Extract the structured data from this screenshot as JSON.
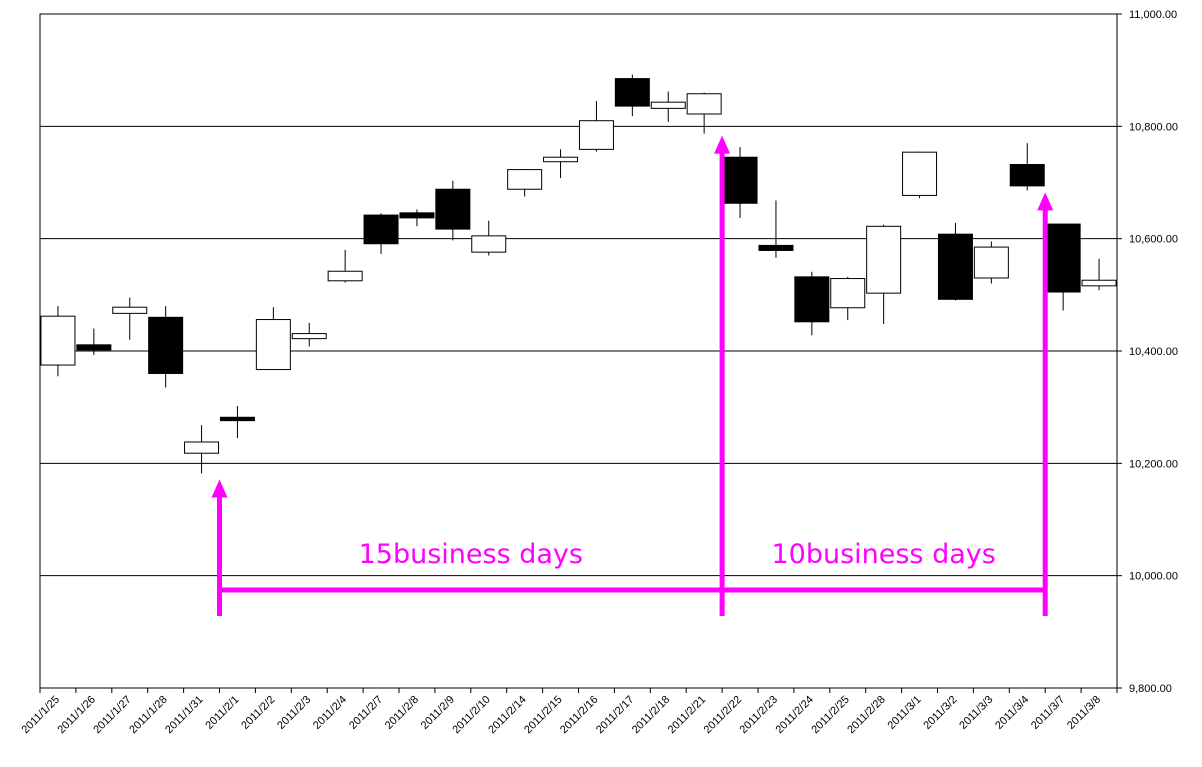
{
  "chart_data": {
    "type": "candlestick",
    "title": "",
    "xlabel": "",
    "ylabel": "",
    "ylim": [
      9800,
      11000
    ],
    "y_ticks": [
      9800,
      10000,
      10200,
      10400,
      10600,
      10800,
      11000
    ],
    "y_tick_labels": [
      "9,800.00",
      "10,000.00",
      "10,200.00",
      "10,400.00",
      "10,600.00",
      "10,800.00",
      "11,000.00"
    ],
    "y_axis_side": "right",
    "grid": true,
    "up_color": "#ffffff",
    "down_color": "#000000",
    "categories": [
      "2011/1/25",
      "2011/1/26",
      "2011/1/27",
      "2011/1/28",
      "2011/1/31",
      "2011/2/1",
      "2011/2/2",
      "2011/2/3",
      "2011/2/4",
      "2011/2/7",
      "2011/2/8",
      "2011/2/9",
      "2011/2/10",
      "2011/2/14",
      "2011/2/15",
      "2011/2/16",
      "2011/2/17",
      "2011/2/18",
      "2011/2/21",
      "2011/2/22",
      "2011/2/23",
      "2011/2/24",
      "2011/2/25",
      "2011/2/28",
      "2011/3/1",
      "2011/3/2",
      "2011/3/3",
      "2011/3/4",
      "2011/3/7",
      "2011/3/8"
    ],
    "candles": [
      {
        "o": 10375,
        "h": 10480,
        "l": 10355,
        "c": 10462
      },
      {
        "o": 10411,
        "h": 10440,
        "l": 10393,
        "c": 10402
      },
      {
        "o": 10467,
        "h": 10495,
        "l": 10420,
        "c": 10478
      },
      {
        "o": 10460,
        "h": 10480,
        "l": 10335,
        "c": 10360
      },
      {
        "o": 10218,
        "h": 10268,
        "l": 10182,
        "c": 10238
      },
      {
        "o": 10282,
        "h": 10302,
        "l": 10245,
        "c": 10276
      },
      {
        "o": 10367,
        "h": 10478,
        "l": 10367,
        "c": 10456
      },
      {
        "o": 10422,
        "h": 10450,
        "l": 10408,
        "c": 10431
      },
      {
        "o": 10525,
        "h": 10580,
        "l": 10522,
        "c": 10542
      },
      {
        "o": 10642,
        "h": 10645,
        "l": 10573,
        "c": 10591
      },
      {
        "o": 10646,
        "h": 10652,
        "l": 10622,
        "c": 10637
      },
      {
        "o": 10688,
        "h": 10703,
        "l": 10597,
        "c": 10617
      },
      {
        "o": 10576,
        "h": 10632,
        "l": 10570,
        "c": 10605
      },
      {
        "o": 10688,
        "h": 10724,
        "l": 10675,
        "c": 10723
      },
      {
        "o": 10737,
        "h": 10759,
        "l": 10708,
        "c": 10745
      },
      {
        "o": 10759,
        "h": 10845,
        "l": 10755,
        "c": 10810
      },
      {
        "o": 10885,
        "h": 10892,
        "l": 10818,
        "c": 10836
      },
      {
        "o": 10832,
        "h": 10862,
        "l": 10808,
        "c": 10843
      },
      {
        "o": 10822,
        "h": 10860,
        "l": 10787,
        "c": 10858
      },
      {
        "o": 10745,
        "h": 10763,
        "l": 10637,
        "c": 10663
      },
      {
        "o": 10588,
        "h": 10668,
        "l": 10566,
        "c": 10579
      },
      {
        "o": 10532,
        "h": 10541,
        "l": 10428,
        "c": 10452
      },
      {
        "o": 10477,
        "h": 10532,
        "l": 10455,
        "c": 10529
      },
      {
        "o": 10503,
        "h": 10625,
        "l": 10448,
        "c": 10622
      },
      {
        "o": 10677,
        "h": 10755,
        "l": 10672,
        "c": 10754
      },
      {
        "o": 10608,
        "h": 10628,
        "l": 10490,
        "c": 10492
      },
      {
        "o": 10530,
        "h": 10595,
        "l": 10520,
        "c": 10585
      },
      {
        "o": 10732,
        "h": 10770,
        "l": 10686,
        "c": 10694
      },
      {
        "o": 10626,
        "h": 10626,
        "l": 10472,
        "c": 10505
      },
      {
        "o": 10516,
        "h": 10564,
        "l": 10508,
        "c": 10526
      }
    ],
    "annotations": [
      {
        "text": "15business days",
        "from": "2011/1/31",
        "to": "2011/2/21"
      },
      {
        "text": "10business days",
        "from": "2011/2/21",
        "to": "2011/3/4"
      }
    ],
    "annotation_color": "#ff00ff"
  }
}
